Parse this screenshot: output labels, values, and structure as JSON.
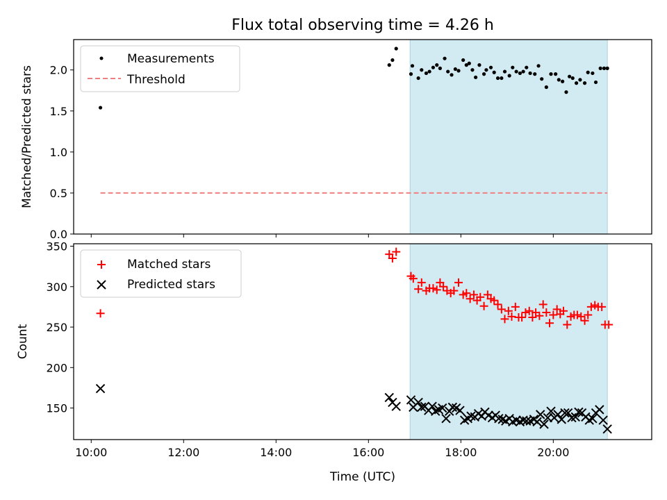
{
  "chart_data": {
    "title": "Flux total observing time = 4.26 h",
    "type": "scatter",
    "xlabel": "Time (UTC)",
    "x_unit": "hours UTC",
    "xlim": [
      9.62,
      22.13
    ],
    "x_ticks": [
      10,
      12,
      14,
      16,
      18,
      20
    ],
    "x_tick_labels": [
      "10:00",
      "12:00",
      "14:00",
      "16:00",
      "18:00",
      "20:00"
    ],
    "shaded_span": [
      16.9,
      21.17
    ],
    "shade_color": "#add8e6",
    "panels": [
      {
        "ylabel": "Matched/Predicted stars",
        "ylim": [
          0,
          2.37
        ],
        "y_ticks": [
          0,
          0.5,
          1.0,
          1.5,
          2.0
        ],
        "y_tick_labels": [
          "0.0",
          "0.5",
          "1.0",
          "1.5",
          "2.0"
        ],
        "legend_position": "top-left",
        "legend": [
          {
            "label": "Measurements",
            "marker": "dot",
            "color": "#000000"
          },
          {
            "label": "Threshold",
            "marker": "dashed-line",
            "color": "#f08080"
          }
        ],
        "series": [
          {
            "name": "Measurements",
            "marker": "dot",
            "color": "#000000",
            "x": [
              10.2,
              16.45,
              16.52,
              16.6,
              16.92,
              16.95,
              17.08,
              17.15,
              17.25,
              17.32,
              17.4,
              17.48,
              17.55,
              17.65,
              17.72,
              17.8,
              17.88,
              17.95,
              18.05,
              18.12,
              18.18,
              18.25,
              18.32,
              18.4,
              18.5,
              18.55,
              18.65,
              18.72,
              18.8,
              18.88,
              18.95,
              19.05,
              19.12,
              19.2,
              19.28,
              19.35,
              19.42,
              19.5,
              19.6,
              19.68,
              19.75,
              19.85,
              19.95,
              20.05,
              20.12,
              20.2,
              20.28,
              20.35,
              20.42,
              20.5,
              20.58,
              20.68,
              20.75,
              20.85,
              20.92,
              21.02,
              21.1,
              21.17
            ],
            "y": [
              1.54,
              2.06,
              2.12,
              2.26,
              1.95,
              2.05,
              1.9,
              2.0,
              1.96,
              1.98,
              2.03,
              2.06,
              2.02,
              2.14,
              1.98,
              1.94,
              2.01,
              1.99,
              2.12,
              2.06,
              2.08,
              2.0,
              1.91,
              2.06,
              1.95,
              2.0,
              2.03,
              1.97,
              1.9,
              1.9,
              1.98,
              1.93,
              2.03,
              1.98,
              1.96,
              1.98,
              2.03,
              1.96,
              1.95,
              2.05,
              1.89,
              1.79,
              1.95,
              1.95,
              1.88,
              1.86,
              1.73,
              1.92,
              1.9,
              1.84,
              1.88,
              1.84,
              1.97,
              1.96,
              1.85,
              2.02,
              2.02,
              2.02
            ]
          },
          {
            "name": "Threshold",
            "marker": "dashed-line",
            "color": "#f08080",
            "x": [
              10.2,
              21.17
            ],
            "y": [
              0.5,
              0.5
            ]
          }
        ]
      },
      {
        "ylabel": "Count",
        "ylim": [
          111,
          353
        ],
        "y_ticks": [
          150,
          200,
          250,
          300,
          350
        ],
        "y_tick_labels": [
          "150",
          "200",
          "250",
          "300",
          "350"
        ],
        "legend_position": "top-left",
        "legend": [
          {
            "label": "Matched stars",
            "marker": "plus",
            "color": "#ff0000"
          },
          {
            "label": "Predicted stars",
            "marker": "x",
            "color": "#000000"
          }
        ],
        "series": [
          {
            "name": "Matched stars",
            "marker": "plus",
            "color": "#ff0000",
            "x": [
              10.2,
              16.45,
              16.52,
              16.6,
              16.92,
              16.97,
              17.08,
              17.15,
              17.25,
              17.32,
              17.4,
              17.48,
              17.55,
              17.62,
              17.7,
              17.78,
              17.85,
              17.95,
              18.05,
              18.12,
              18.2,
              18.28,
              18.35,
              18.42,
              18.5,
              18.58,
              18.65,
              18.72,
              18.8,
              18.88,
              18.95,
              19.03,
              19.1,
              19.18,
              19.25,
              19.32,
              19.4,
              19.48,
              19.55,
              19.62,
              19.7,
              19.78,
              19.85,
              19.92,
              20.0,
              20.08,
              20.15,
              20.22,
              20.3,
              20.38,
              20.45,
              20.52,
              20.6,
              20.68,
              20.75,
              20.82,
              20.9,
              20.97,
              21.05,
              21.12,
              21.2
            ],
            "y": [
              267,
              340,
              335,
              343,
              313,
              310,
              297,
              305,
              295,
              298,
              298,
              296,
              305,
              300,
              295,
              292,
              295,
              305,
              290,
              292,
              285,
              290,
              283,
              287,
              276,
              290,
              285,
              283,
              278,
              272,
              260,
              270,
              263,
              275,
              262,
              262,
              268,
              270,
              262,
              268,
              264,
              278,
              268,
              255,
              265,
              272,
              266,
              270,
              253,
              263,
              265,
              265,
              263,
              258,
              265,
              275,
              277,
              275,
              275,
              253,
              253
            ]
          },
          {
            "name": "Predicted stars",
            "marker": "x",
            "color": "#000000",
            "x": [
              10.2,
              16.45,
              16.52,
              16.6,
              16.92,
              16.97,
              17.08,
              17.15,
              17.22,
              17.3,
              17.38,
              17.45,
              17.52,
              17.6,
              17.68,
              17.75,
              17.82,
              17.9,
              17.98,
              18.08,
              18.15,
              18.22,
              18.3,
              18.38,
              18.45,
              18.52,
              18.6,
              18.68,
              18.75,
              18.82,
              18.9,
              18.97,
              19.05,
              19.12,
              19.2,
              19.28,
              19.35,
              19.42,
              19.5,
              19.58,
              19.65,
              19.72,
              19.8,
              19.88,
              19.95,
              20.02,
              20.1,
              20.18,
              20.25,
              20.32,
              20.4,
              20.48,
              20.55,
              20.62,
              20.7,
              20.78,
              20.85,
              20.92,
              21.0,
              21.08,
              21.17
            ],
            "y": [
              174,
              163,
              157,
              152,
              160,
              151,
              157,
              151,
              152,
              147,
              152,
              146,
              148,
              150,
              137,
              146,
              151,
              150,
              147,
              135,
              137,
              140,
              139,
              143,
              140,
              145,
              141,
              138,
              141,
              137,
              136,
              134,
              137,
              133,
              135,
              133,
              135,
              134,
              134,
              136,
              133,
              142,
              130,
              138,
              146,
              138,
              142,
              136,
              144,
              144,
              138,
              139,
              145,
              144,
              139,
              135,
              137,
              144,
              148,
              135,
              124
            ]
          }
        ]
      }
    ]
  }
}
